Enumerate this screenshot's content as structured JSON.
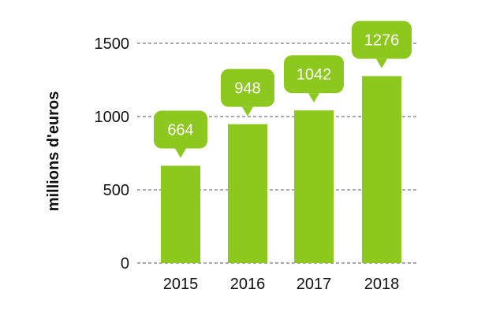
{
  "chart_data": {
    "type": "bar",
    "categories": [
      "2015",
      "2016",
      "2017",
      "2018"
    ],
    "values": [
      664,
      948,
      1042,
      1276
    ],
    "data_labels": [
      "664",
      "948",
      "1042",
      "1276"
    ],
    "title": "",
    "xlabel": "",
    "ylabel": "millions d'euros",
    "ylim": [
      0,
      1500
    ],
    "yticks": [
      0,
      500,
      1000,
      1500
    ],
    "ytick_labels": [
      "0",
      "500",
      "1000",
      "1500"
    ],
    "grid": true,
    "legend": "none",
    "colors": {
      "bar": "#8cc81e",
      "callout": "#8cc81e",
      "grid": "#555555",
      "text": "#111111",
      "callout_text": "#ffffff"
    }
  }
}
